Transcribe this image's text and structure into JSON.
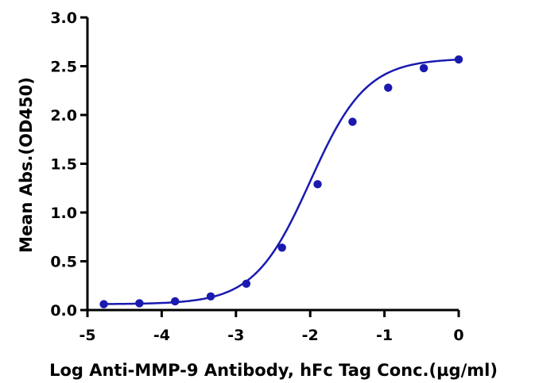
{
  "chart_data": {
    "type": "scatter",
    "title": "",
    "xlabel": "Log Anti-MMP-9 Antibody, hFc Tag Conc.(µg/ml)",
    "ylabel": "Mean Abs.(OD450)",
    "xlim": [
      -5,
      0
    ],
    "ylim": [
      0,
      3.0
    ],
    "x_ticks": [
      -5,
      -4,
      -3,
      -2,
      -1,
      0
    ],
    "x_tick_labels": [
      "-5",
      "-4",
      "-3",
      "-2",
      "-1",
      "0"
    ],
    "y_ticks": [
      0,
      0.5,
      1.0,
      1.5,
      2.0,
      2.5,
      3.0
    ],
    "y_tick_labels": [
      "0.0",
      "0.5",
      "1.0",
      "1.5",
      "2.0",
      "2.5",
      "3.0"
    ],
    "grid": false,
    "color": "#1a1ab0",
    "series": [
      {
        "x": [
          -4.78,
          -4.3,
          -3.82,
          -3.34,
          -2.86,
          -2.38,
          -1.9,
          -1.43,
          -0.95,
          -0.47,
          0.0
        ],
        "y": [
          0.06,
          0.07,
          0.09,
          0.14,
          0.27,
          0.64,
          1.29,
          1.93,
          2.28,
          2.48,
          2.57
        ]
      }
    ],
    "fit": {
      "type": "4PL",
      "bottom": 0.06,
      "top": 2.58,
      "log_ec50": -2.0,
      "hill": 1.15
    }
  }
}
